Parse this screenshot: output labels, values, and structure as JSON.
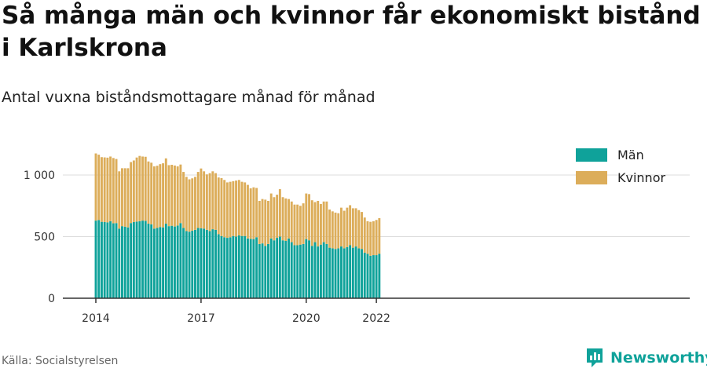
{
  "header": {
    "title": "Så många män och kvinnor får ekonomiskt bistånd i Karlskrona",
    "subtitle": "Antal vuxna biståndsmottagare månad för månad"
  },
  "footer": {
    "source": "Källa: Socialstyrelsen",
    "brand": "Newsworthy"
  },
  "colors": {
    "men": "#0fa29a",
    "women": "#dcad5a",
    "grid": "#dcdcdc",
    "axis": "#333333"
  },
  "chart_data": {
    "type": "bar",
    "stacked": true,
    "x_start": "2014-01",
    "x_ticks": [
      "2014",
      "2017",
      "2020",
      "2022"
    ],
    "y_ticks": [
      "0",
      "500",
      "1 000"
    ],
    "y_tick_values": [
      0,
      500,
      1000
    ],
    "ylim": [
      0,
      1280
    ],
    "legend_position": "top-right",
    "series": [
      {
        "name": "Män",
        "color": "#0fa29a",
        "values": [
          630,
          635,
          620,
          618,
          616,
          625,
          608,
          610,
          565,
          585,
          580,
          575,
          610,
          618,
          622,
          625,
          630,
          628,
          605,
          600,
          565,
          570,
          578,
          575,
          605,
          585,
          588,
          582,
          590,
          610,
          570,
          545,
          540,
          548,
          555,
          570,
          568,
          565,
          555,
          545,
          560,
          555,
          520,
          505,
          495,
          490,
          495,
          505,
          500,
          510,
          505,
          505,
          485,
          482,
          480,
          495,
          440,
          445,
          425,
          440,
          485,
          470,
          490,
          500,
          470,
          465,
          485,
          455,
          430,
          430,
          435,
          440,
          480,
          470,
          425,
          455,
          420,
          435,
          455,
          440,
          410,
          405,
          400,
          405,
          420,
          405,
          415,
          430,
          410,
          420,
          405,
          400,
          370,
          360,
          345,
          350,
          350,
          360
        ]
      },
      {
        "name": "Kvinnor",
        "color": "#dcad5a",
        "values": [
          545,
          530,
          525,
          525,
          525,
          525,
          530,
          520,
          465,
          470,
          475,
          480,
          495,
          500,
          520,
          530,
          520,
          520,
          505,
          500,
          505,
          505,
          510,
          520,
          530,
          495,
          495,
          495,
          480,
          475,
          455,
          440,
          425,
          425,
          430,
          455,
          485,
          465,
          450,
          470,
          470,
          460,
          460,
          470,
          465,
          450,
          450,
          445,
          455,
          450,
          440,
          435,
          435,
          410,
          420,
          400,
          350,
          360,
          375,
          350,
          365,
          350,
          350,
          385,
          350,
          345,
          320,
          330,
          330,
          330,
          315,
          330,
          370,
          375,
          370,
          325,
          370,
          330,
          330,
          345,
          310,
          300,
          295,
          285,
          315,
          305,
          320,
          325,
          320,
          310,
          310,
          300,
          285,
          265,
          275,
          275,
          285,
          290
        ]
      }
    ]
  }
}
